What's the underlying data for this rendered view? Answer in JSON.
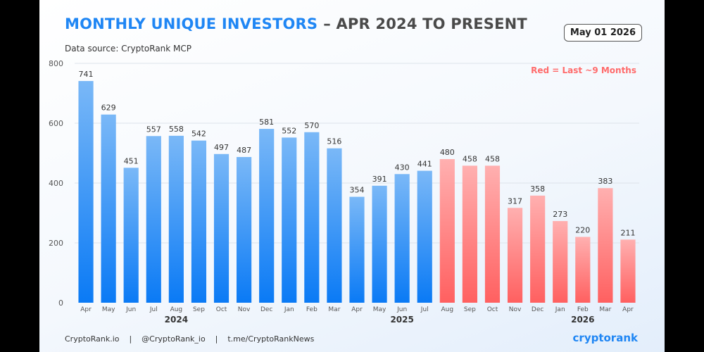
{
  "header": {
    "title_main": "MONTHLY UNIQUE INVESTORS",
    "title_rest": "– APR 2024 TO PRESENT",
    "date_badge": "May 01 2026",
    "source": "Data source: CryptoRank MCP",
    "legend_note": "Red = Last ~9 Months"
  },
  "footer": {
    "links": "CryptoRank.io    |    @CryptoRank_io    |    t.me/CryptoRankNews",
    "brand": "cryptorank"
  },
  "colors": {
    "blue_top": "#7ab8f7",
    "blue_bottom": "#0a7af5",
    "red_top": "#ffb0b0",
    "red_bottom": "#ff6060",
    "grid": "#dde3ea"
  },
  "chart_data": {
    "type": "bar",
    "categories": [
      "Apr",
      "May",
      "Jun",
      "Jul",
      "Aug",
      "Sep",
      "Oct",
      "Nov",
      "Dec",
      "Jan",
      "Feb",
      "Mar",
      "Apr",
      "May",
      "Jun",
      "Jul",
      "Aug",
      "Sep",
      "Oct",
      "Nov",
      "Dec",
      "Jan",
      "Feb",
      "Mar",
      "Apr"
    ],
    "values": [
      741,
      629,
      451,
      557,
      558,
      542,
      497,
      487,
      581,
      552,
      570,
      516,
      354,
      391,
      430,
      441,
      480,
      458,
      458,
      317,
      358,
      273,
      220,
      383,
      211
    ],
    "highlight_from_index": 16,
    "year_labels": [
      {
        "label": "2024",
        "center_index": 4
      },
      {
        "label": "2025",
        "center_index": 14
      },
      {
        "label": "2026",
        "center_index": 22
      }
    ],
    "ylim": [
      0,
      800
    ],
    "yticks": [
      0,
      200,
      400,
      600,
      800
    ],
    "grid": true,
    "legend_position": "top-right"
  }
}
